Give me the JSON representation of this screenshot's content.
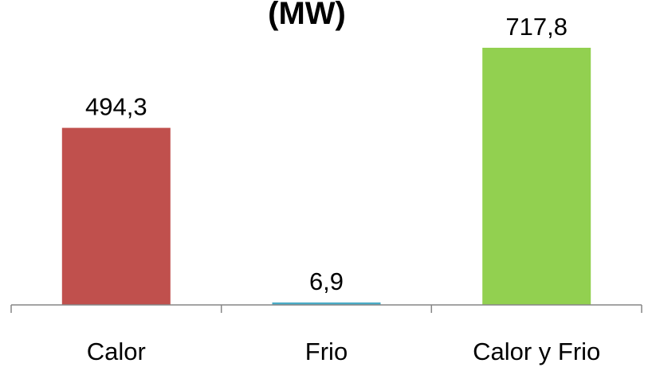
{
  "chart_data": {
    "type": "bar",
    "title": "(MW)",
    "categories": [
      "Calor",
      "Frio",
      "Calor y Frio"
    ],
    "values": [
      494.3,
      6.9,
      717.8
    ],
    "data_labels": [
      "494,3",
      "6,9",
      "717,8"
    ],
    "colors": [
      "#C0504D",
      "#4BACC6",
      "#92D050"
    ],
    "xlabel": "",
    "ylabel": "",
    "ylim": [
      0,
      717.8
    ],
    "grid": false,
    "legend": "none"
  }
}
